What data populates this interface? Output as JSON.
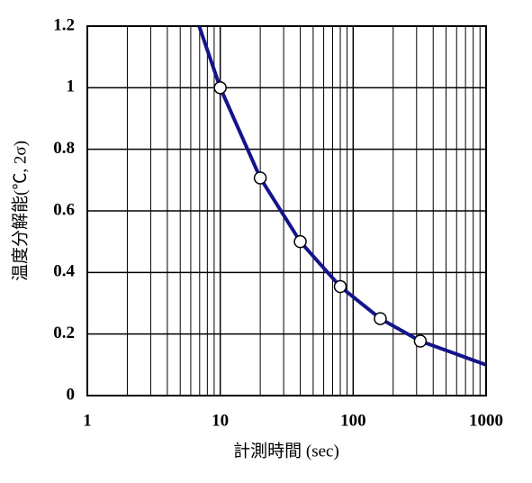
{
  "chart_data": {
    "type": "line",
    "x_label": "計測時間 (sec)",
    "y_label": "温度分解能(℃, 2σ)",
    "xlog": true,
    "xlim": [
      1,
      1000
    ],
    "xticks": [
      1,
      10,
      100,
      1000
    ],
    "ylim": [
      0,
      1.2
    ],
    "yticks": [
      0,
      0.2,
      0.4,
      0.6,
      0.8,
      1,
      1.2
    ],
    "grid": true,
    "minor_grid": true,
    "series": [
      {
        "color": "#14148c",
        "line": true,
        "marker": false,
        "x": [
          6.94,
          10,
          20,
          40,
          80,
          160,
          320,
          1000
        ],
        "values": [
          1.2,
          1.0,
          0.707,
          0.5,
          0.354,
          0.25,
          0.177,
          0.1
        ]
      },
      {
        "color": "#000000",
        "line": false,
        "marker": true,
        "x": [
          10,
          20,
          40,
          80,
          160,
          320
        ],
        "values": [
          1.0,
          0.707,
          0.5,
          0.354,
          0.25,
          0.177
        ]
      }
    ]
  }
}
